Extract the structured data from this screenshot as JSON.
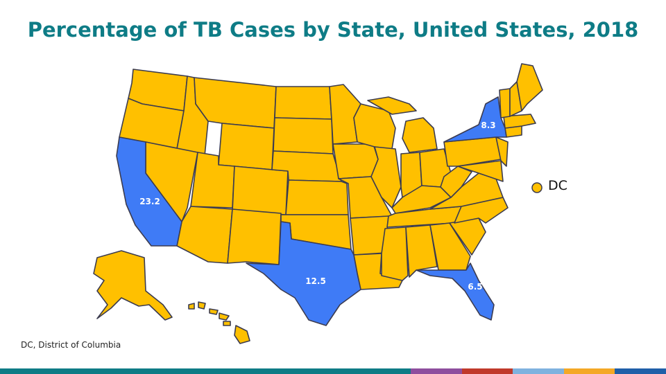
{
  "title": "Percentage of TB Cases by State, United States, 2018",
  "footnote": "DC, District of Columbia",
  "colors": {
    "default_state": "#FFC000",
    "highlight_state": "#3F7BF6",
    "border": "#3b3b4f"
  },
  "states": [
    {
      "name": "California",
      "value": "23.2",
      "highlighted": true
    },
    {
      "name": "Texas",
      "value": "12.5",
      "highlighted": true
    },
    {
      "name": "New York",
      "value": "8.3",
      "highlighted": true
    },
    {
      "name": "Florida",
      "value": "6.5",
      "highlighted": true
    }
  ],
  "dc": {
    "label": "DC"
  },
  "footer_colors": [
    "#0E7C86",
    "#0E7C86",
    "#0E7C86",
    "#0E7C86",
    "#0E7C86",
    "#0E7C86",
    "#0E7C86",
    "#0E7C86",
    "#8E4E9E",
    "#C0392B",
    "#7FB2DF",
    "#F4A826",
    "#1F5FA8"
  ]
}
